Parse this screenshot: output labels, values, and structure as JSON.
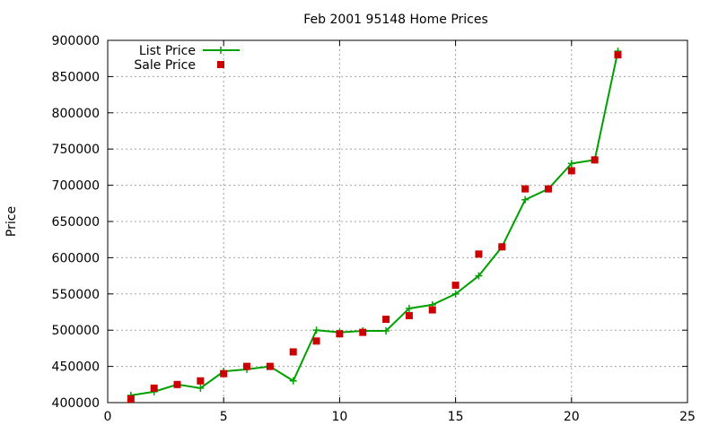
{
  "chart_data": {
    "type": "line",
    "title": "Feb 2001 95148 Home Prices",
    "xlabel": "",
    "ylabel": "Price",
    "xlim": [
      0,
      25
    ],
    "ylim": [
      400000,
      900000
    ],
    "xticks": [
      0,
      5,
      10,
      15,
      20,
      25
    ],
    "yticks": [
      400000,
      450000,
      500000,
      550000,
      600000,
      650000,
      700000,
      750000,
      800000,
      850000,
      900000
    ],
    "grid": true,
    "legend_position": "top-left",
    "series": [
      {
        "name": "List Price",
        "style": "line-with-plus-markers",
        "color": "#00a000",
        "x": [
          1,
          2,
          3,
          4,
          5,
          6,
          7,
          8,
          9,
          10,
          11,
          12,
          13,
          14,
          15,
          16,
          17,
          18,
          19,
          20,
          21,
          22
        ],
        "y": [
          410000,
          415000,
          425000,
          420000,
          443000,
          446000,
          450000,
          430000,
          500000,
          497000,
          499000,
          499000,
          530000,
          535000,
          550000,
          575000,
          615000,
          680000,
          695000,
          730000,
          735000,
          885000
        ]
      },
      {
        "name": "Sale Price",
        "style": "square-markers",
        "color": "#cc0000",
        "x": [
          1,
          2,
          3,
          4,
          5,
          6,
          7,
          8,
          9,
          10,
          11,
          12,
          13,
          14,
          15,
          16,
          17,
          18,
          19,
          20,
          21,
          22
        ],
        "y": [
          405000,
          420000,
          425000,
          430000,
          440000,
          450000,
          450000,
          470000,
          485000,
          495000,
          497000,
          515000,
          520000,
          528000,
          562000,
          605000,
          615000,
          695000,
          695000,
          720000,
          735000,
          880000
        ]
      }
    ]
  }
}
